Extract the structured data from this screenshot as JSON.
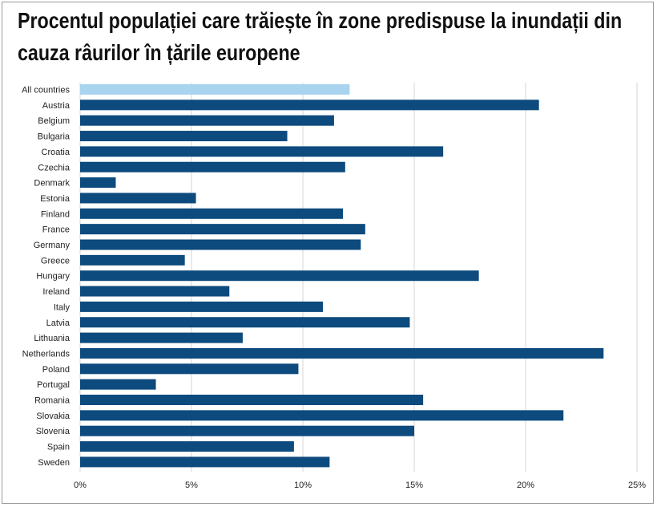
{
  "title_lines": [
    "Procentul populației care trăiește în zone predispuse la inundații din",
    "cauza râurilor în țările europene"
  ],
  "colors": {
    "highlight_bar": "#a9d4f0",
    "bar": "#0d4a7d",
    "grid": "#d4d4d4"
  },
  "chart_data": {
    "type": "bar",
    "orientation": "horizontal",
    "title": "Procentul populației care trăiește în zone predispuse la inundații din cauza râurilor în țările europene",
    "xlabel": "",
    "ylabel": "",
    "xlim": [
      0,
      25
    ],
    "xticks": [
      0,
      5,
      10,
      15,
      20,
      25
    ],
    "xtick_labels": [
      "0%",
      "5%",
      "10%",
      "15%",
      "20%",
      "25%"
    ],
    "grid": true,
    "categories": [
      "All countries",
      "Austria",
      "Belgium",
      "Bulgaria",
      "Croatia",
      "Czechia",
      "Denmark",
      "Estonia",
      "Finland",
      "France",
      "Germany",
      "Greece",
      "Hungary",
      "Ireland",
      "Italy",
      "Latvia",
      "Lithuania",
      "Netherlands",
      "Poland",
      "Portugal",
      "Romania",
      "Slovakia",
      "Slovenia",
      "Spain",
      "Sweden"
    ],
    "values": [
      12.1,
      20.6,
      11.4,
      9.3,
      16.3,
      11.9,
      1.6,
      5.2,
      11.8,
      12.8,
      12.6,
      4.7,
      17.9,
      6.7,
      10.9,
      14.8,
      7.3,
      23.5,
      9.8,
      3.4,
      15.4,
      21.7,
      15.0,
      9.6,
      11.2
    ],
    "highlight_category": "All countries"
  }
}
